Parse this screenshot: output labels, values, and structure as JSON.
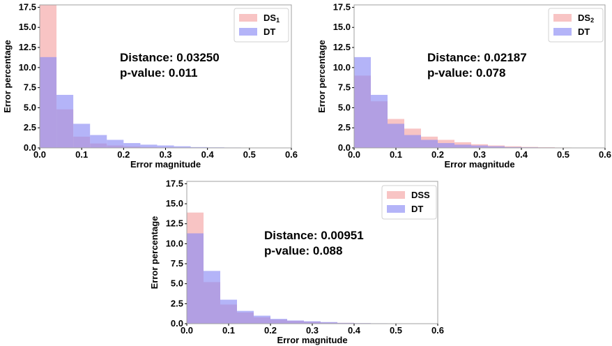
{
  "chart_data": [
    {
      "type": "bar",
      "title": "",
      "xlabel": "Error magnitude",
      "ylabel": "Error percentage",
      "xlim": [
        0,
        0.6
      ],
      "ylim": [
        0,
        17.8
      ],
      "xticks": [
        "0.0",
        "0.1",
        "0.2",
        "0.3",
        "0.4",
        "0.5",
        "0.6"
      ],
      "yticks": [
        "0.0",
        "2.5",
        "5.0",
        "7.5",
        "10.0",
        "12.5",
        "15.0",
        "17.5"
      ],
      "bin_edges": [
        0,
        0.04,
        0.08,
        0.12,
        0.16,
        0.2,
        0.24,
        0.28,
        0.32,
        0.36,
        0.4,
        0.44,
        0.48,
        0.52,
        0.56,
        0.6
      ],
      "legend_position": "top-right",
      "series": [
        {
          "name": "DS",
          "sub": "1",
          "color": "#f4a4a4",
          "values": [
            17.8,
            4.8,
            1.4,
            0.55,
            0.3,
            0.17,
            0.1,
            0.06,
            0.04,
            0.03,
            0.02,
            0.01,
            0.01,
            0.0,
            0.0
          ]
        },
        {
          "name": "DT",
          "sub": "",
          "color": "#8c8cf4",
          "values": [
            11.3,
            6.6,
            3.0,
            1.6,
            1.0,
            0.6,
            0.4,
            0.3,
            0.2,
            0.1,
            0.07,
            0.05,
            0.03,
            0.02,
            0.01
          ]
        }
      ],
      "annotations": [
        "Distance: 0.03250",
        "p-value: 0.011"
      ]
    },
    {
      "type": "bar",
      "title": "",
      "xlabel": "Error magnitude",
      "ylabel": "Error percentage",
      "xlim": [
        0,
        0.6
      ],
      "ylim": [
        0,
        17.8
      ],
      "xticks": [
        "0.0",
        "0.1",
        "0.2",
        "0.3",
        "0.4",
        "0.5",
        "0.6"
      ],
      "yticks": [
        "0.0",
        "2.5",
        "5.0",
        "7.5",
        "10.0",
        "12.5",
        "15.0",
        "17.5"
      ],
      "bin_edges": [
        0,
        0.04,
        0.08,
        0.12,
        0.16,
        0.2,
        0.24,
        0.28,
        0.32,
        0.36,
        0.4,
        0.44,
        0.48,
        0.52,
        0.56,
        0.6
      ],
      "legend_position": "top-right",
      "series": [
        {
          "name": "DS",
          "sub": "2",
          "color": "#f4a4a4",
          "values": [
            9.0,
            5.8,
            3.6,
            2.4,
            1.4,
            1.0,
            0.7,
            0.45,
            0.3,
            0.2,
            0.12,
            0.08,
            0.05,
            0.03,
            0.02
          ]
        },
        {
          "name": "DT",
          "sub": "",
          "color": "#8c8cf4",
          "values": [
            11.3,
            6.6,
            3.0,
            1.6,
            1.0,
            0.6,
            0.4,
            0.3,
            0.2,
            0.1,
            0.07,
            0.05,
            0.03,
            0.02,
            0.01
          ]
        }
      ],
      "annotations": [
        "Distance: 0.02187",
        "p-value: 0.078"
      ]
    },
    {
      "type": "bar",
      "title": "",
      "xlabel": "Error magnitude",
      "ylabel": "Error percentage",
      "xlim": [
        0,
        0.6
      ],
      "ylim": [
        0,
        17.8
      ],
      "xticks": [
        "0.0",
        "0.1",
        "0.2",
        "0.3",
        "0.4",
        "0.5",
        "0.6"
      ],
      "yticks": [
        "0.0",
        "2.5",
        "5.0",
        "7.5",
        "10.0",
        "12.5",
        "15.0",
        "17.5"
      ],
      "bin_edges": [
        0,
        0.04,
        0.08,
        0.12,
        0.16,
        0.2,
        0.24,
        0.28,
        0.32,
        0.36,
        0.4,
        0.44,
        0.48,
        0.52,
        0.56,
        0.6
      ],
      "legend_position": "top-right",
      "series": [
        {
          "name": "DSS",
          "sub": "",
          "color": "#f4a4a4",
          "values": [
            13.9,
            5.2,
            2.4,
            1.4,
            0.8,
            0.5,
            0.35,
            0.25,
            0.15,
            0.1,
            0.06,
            0.04,
            0.02,
            0.01,
            0.0
          ]
        },
        {
          "name": "DT",
          "sub": "",
          "color": "#8c8cf4",
          "values": [
            11.3,
            6.6,
            3.0,
            1.6,
            1.0,
            0.6,
            0.4,
            0.3,
            0.2,
            0.1,
            0.07,
            0.05,
            0.03,
            0.02,
            0.01
          ]
        }
      ],
      "annotations": [
        "Distance: 0.00951",
        "p-value: 0.088"
      ]
    }
  ]
}
